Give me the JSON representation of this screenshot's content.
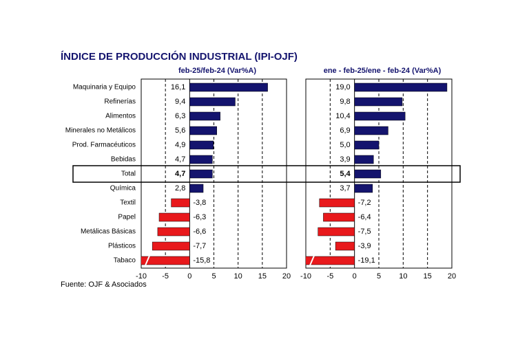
{
  "title": "ÍNDICE DE PRODUCCIÓN INDUSTRIAL (IPI-OJF)",
  "source": "Fuente: OJF & Asociados",
  "chart_data": [
    {
      "type": "bar",
      "subtitle": "feb-25/feb-24 (Var%A)",
      "categories": [
        "Maquinaria y Equipo",
        "Refinerías",
        "Alimentos",
        "Minerales no Metálicos",
        "Prod. Farmacéuticos",
        "Bebidas",
        "Total",
        "Química",
        "Textil",
        "Papel",
        "Metálicas Básicas",
        "Plásticos",
        "Tabaco"
      ],
      "values": [
        16.1,
        9.4,
        6.3,
        5.6,
        4.9,
        4.7,
        4.7,
        2.8,
        -3.8,
        -6.3,
        -6.6,
        -7.7,
        -15.8
      ],
      "value_labels": [
        "16,1",
        "9,4",
        "6,3",
        "5,6",
        "4,9",
        "4,7",
        "4,7",
        "2,8",
        "-3,8",
        "-6,3",
        "-6,6",
        "-7,7",
        "-15,8"
      ],
      "xlim": [
        -10,
        20
      ],
      "xticks": [
        -10,
        -5,
        0,
        5,
        10,
        15,
        20
      ],
      "color": "#14146e",
      "negative_color": "#e8191c",
      "highlight_index": 6,
      "grid": true
    },
    {
      "type": "bar",
      "subtitle": "ene - feb-25/ene - feb-24 (Var%A)",
      "values": [
        19.0,
        9.8,
        10.4,
        6.9,
        5.0,
        3.9,
        5.4,
        3.7,
        -7.2,
        -6.4,
        -7.5,
        -3.9,
        -19.1
      ],
      "value_labels": [
        "19,0",
        "9,8",
        "10,4",
        "6,9",
        "5,0",
        "3,9",
        "5,4",
        "3,7",
        "-7,2",
        "-6,4",
        "-7,5",
        "-3,9",
        "-19,1"
      ],
      "xlim": [
        -10,
        20
      ],
      "xticks": [
        -10,
        -5,
        0,
        5,
        10,
        15,
        20
      ],
      "color": "#14146e",
      "negative_color": "#e8191c",
      "highlight_index": 6,
      "grid": true
    }
  ]
}
